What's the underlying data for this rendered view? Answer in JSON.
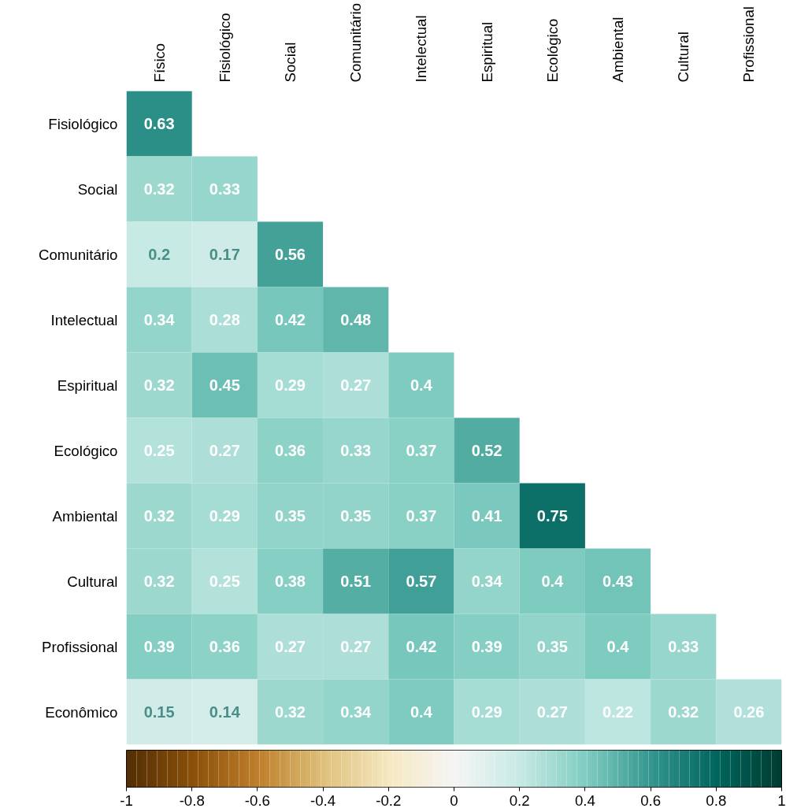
{
  "chart_data": {
    "type": "heatmap",
    "categories": [
      "Físico",
      "Fisiológico",
      "Social",
      "Comunitário",
      "Intelectual",
      "Espiritual",
      "Ecológico",
      "Ambiental",
      "Cultural",
      "Profissional"
    ],
    "y_categories": [
      "Fisiológico",
      "Social",
      "Comunitário",
      "Intelectual",
      "Espiritual",
      "Ecológico",
      "Ambiental",
      "Cultural",
      "Profissional",
      "Econômico"
    ],
    "cells": [
      [
        0.63,
        null,
        null,
        null,
        null,
        null,
        null,
        null,
        null,
        null
      ],
      [
        0.32,
        0.33,
        null,
        null,
        null,
        null,
        null,
        null,
        null,
        null
      ],
      [
        0.2,
        0.17,
        0.56,
        null,
        null,
        null,
        null,
        null,
        null,
        null
      ],
      [
        0.34,
        0.28,
        0.42,
        0.48,
        null,
        null,
        null,
        null,
        null,
        null
      ],
      [
        0.32,
        0.45,
        0.29,
        0.27,
        0.4,
        null,
        null,
        null,
        null,
        null
      ],
      [
        0.25,
        0.27,
        0.36,
        0.33,
        0.37,
        0.52,
        null,
        null,
        null,
        null
      ],
      [
        0.32,
        0.29,
        0.35,
        0.35,
        0.37,
        0.41,
        0.75,
        null,
        null,
        null
      ],
      [
        0.32,
        0.25,
        0.38,
        0.51,
        0.57,
        0.34,
        0.4,
        0.43,
        null,
        null
      ],
      [
        0.39,
        0.36,
        0.27,
        0.27,
        0.42,
        0.39,
        0.35,
        0.4,
        0.33,
        null
      ],
      [
        0.15,
        0.14,
        0.32,
        0.34,
        0.4,
        0.29,
        0.27,
        0.22,
        0.32,
        0.26
      ]
    ],
    "data_labels": true,
    "clim": [
      -1,
      1
    ],
    "cticks": [
      -1,
      -0.8,
      -0.6,
      -0.4,
      -0.2,
      0,
      0.2,
      0.4,
      0.6,
      0.8,
      1
    ]
  }
}
